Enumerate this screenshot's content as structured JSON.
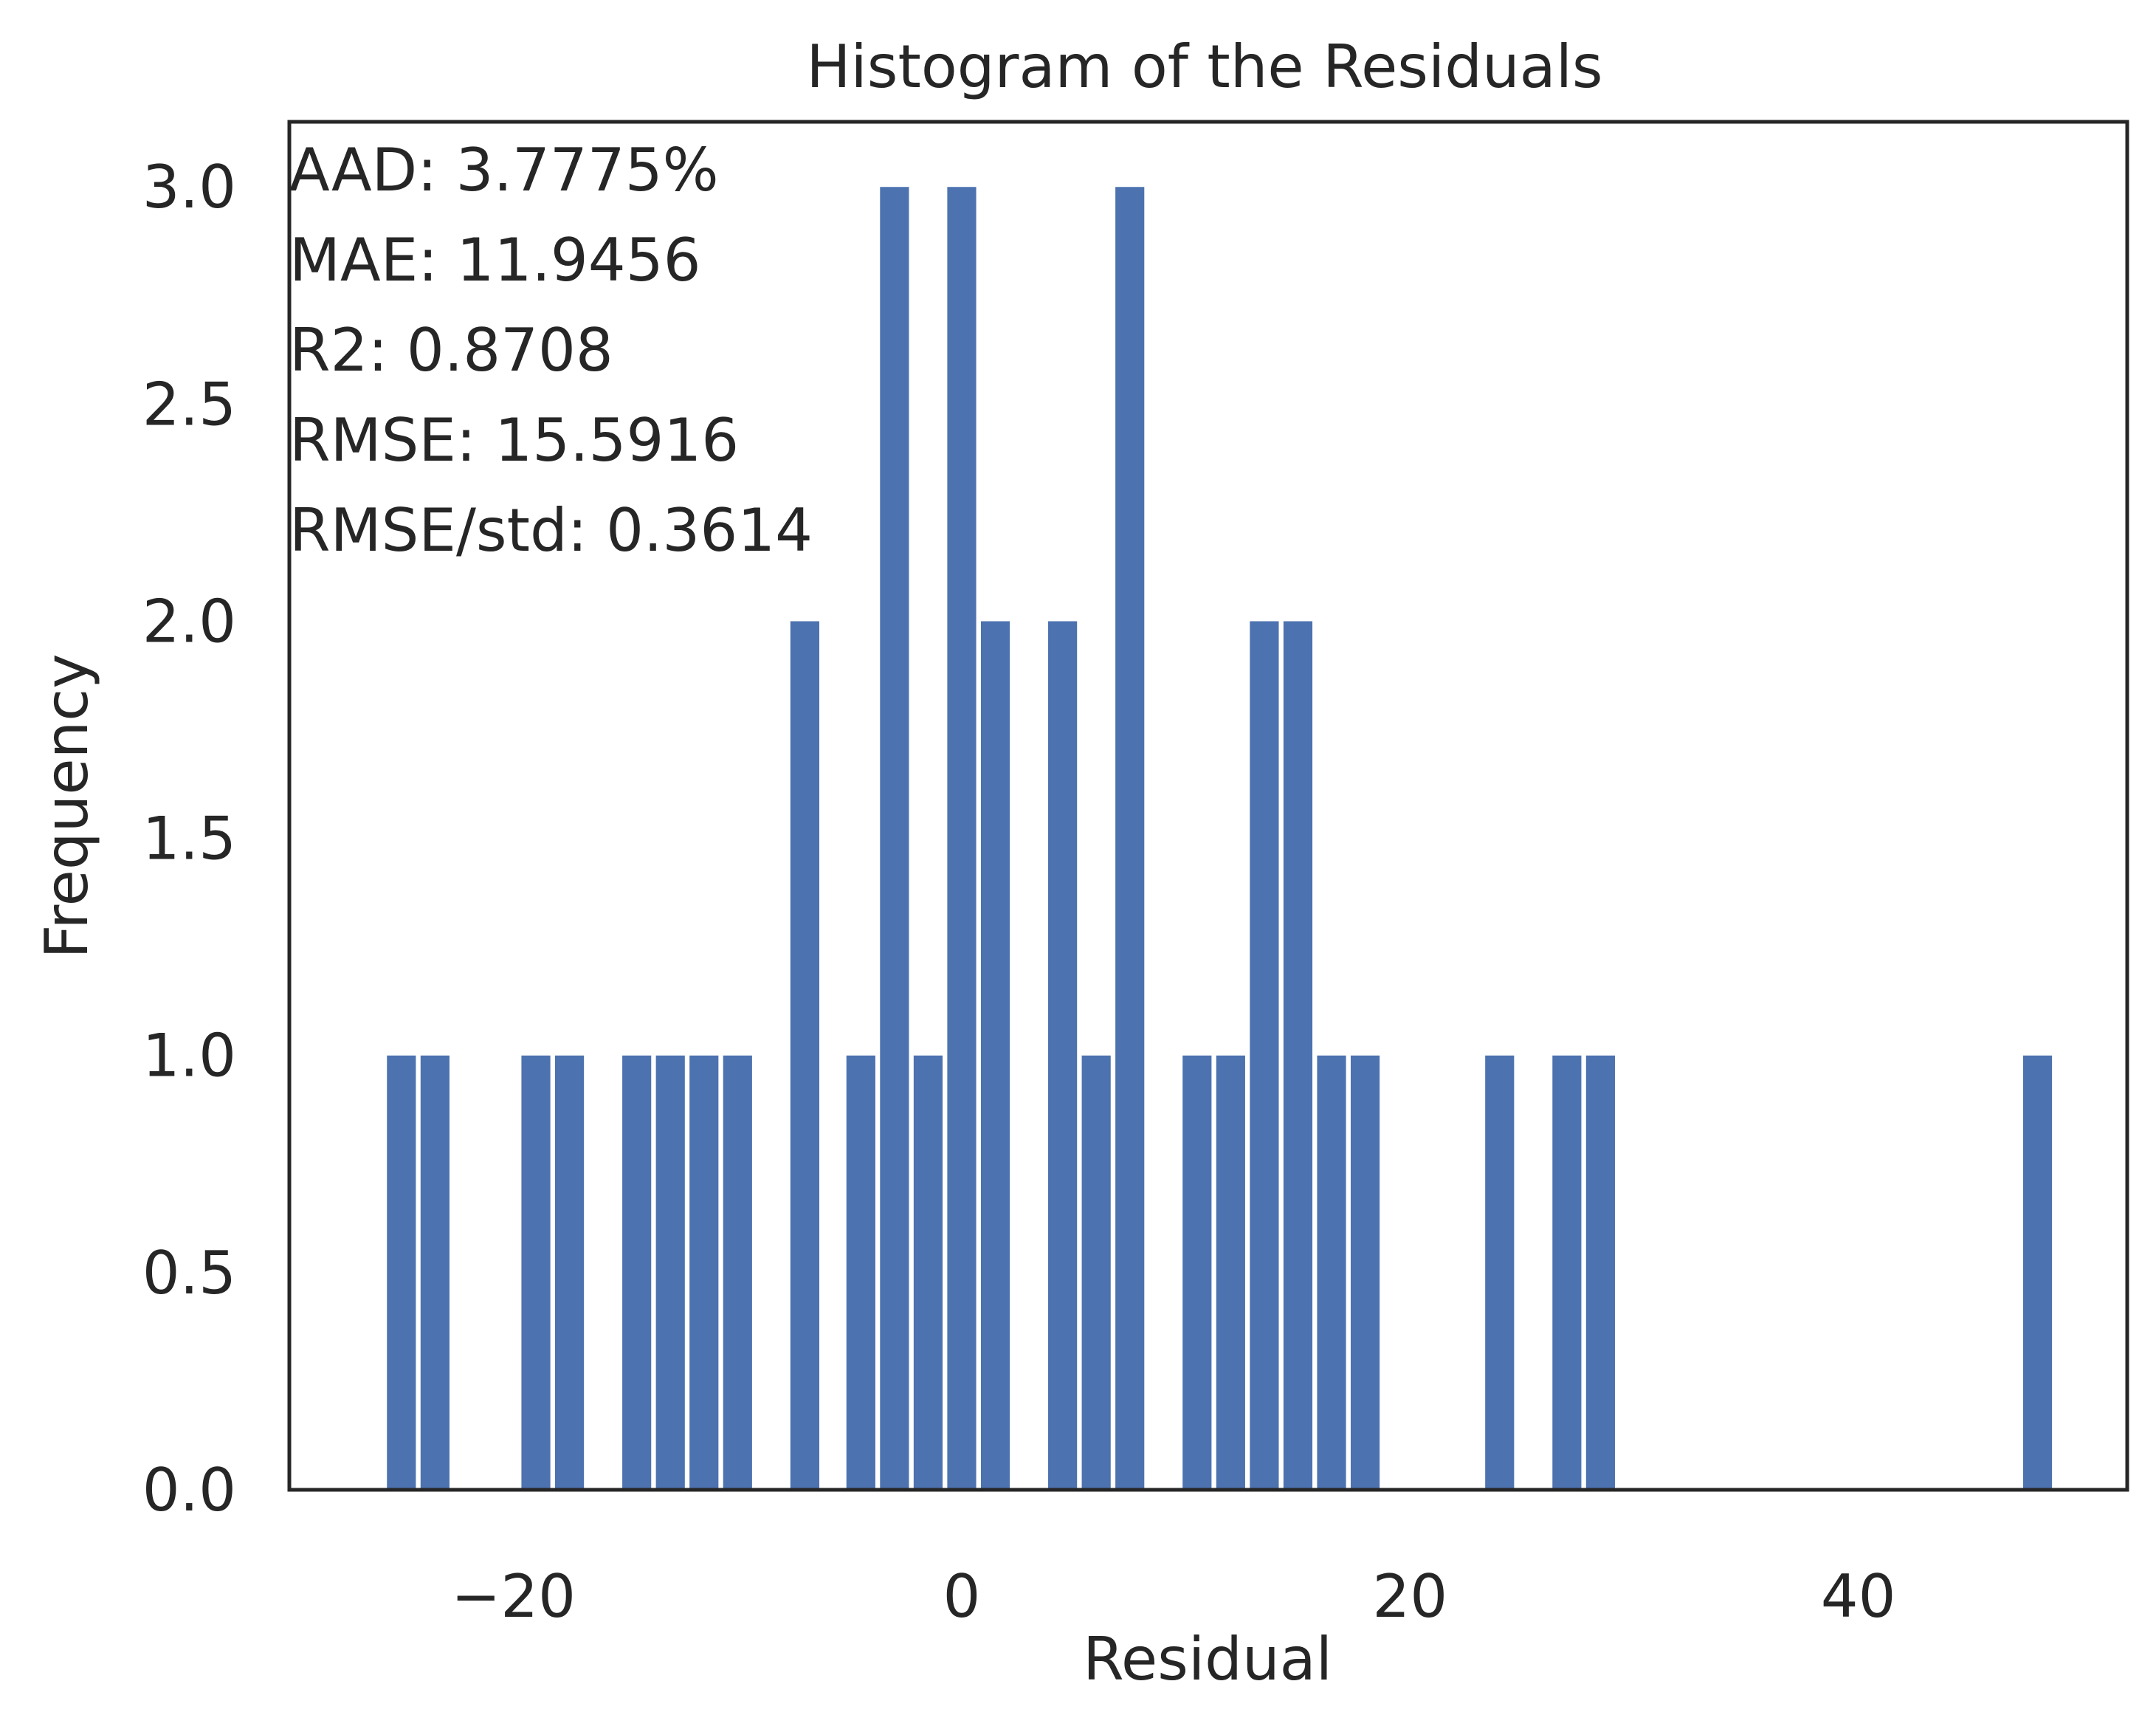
{
  "chart_data": {
    "type": "bar",
    "title": "Histogram of the Residuals",
    "xlabel": "Residual",
    "ylabel": "Frequency",
    "xlim": [
      -30,
      52
    ],
    "ylim": [
      0,
      3.15
    ],
    "grid": false,
    "bar_color": "#4c72b0",
    "text_color": "#262626",
    "bin_width": 1.5,
    "bins": [
      {
        "x": -25,
        "count": 1
      },
      {
        "x": -23.5,
        "count": 1
      },
      {
        "x": -19,
        "count": 1
      },
      {
        "x": -17.5,
        "count": 1
      },
      {
        "x": -14.5,
        "count": 1
      },
      {
        "x": -13,
        "count": 1
      },
      {
        "x": -11.5,
        "count": 1
      },
      {
        "x": -10,
        "count": 1
      },
      {
        "x": -7,
        "count": 2
      },
      {
        "x": -4.5,
        "count": 1
      },
      {
        "x": -3,
        "count": 3
      },
      {
        "x": -1.5,
        "count": 1
      },
      {
        "x": 0,
        "count": 3
      },
      {
        "x": 1.5,
        "count": 2
      },
      {
        "x": 4.5,
        "count": 2
      },
      {
        "x": 6,
        "count": 1
      },
      {
        "x": 7.5,
        "count": 3
      },
      {
        "x": 10.5,
        "count": 1
      },
      {
        "x": 12,
        "count": 1
      },
      {
        "x": 13.5,
        "count": 2
      },
      {
        "x": 15,
        "count": 2
      },
      {
        "x": 16.5,
        "count": 1
      },
      {
        "x": 18,
        "count": 1
      },
      {
        "x": 24,
        "count": 1
      },
      {
        "x": 27,
        "count": 1
      },
      {
        "x": 28.5,
        "count": 1
      },
      {
        "x": 48,
        "count": 1
      }
    ],
    "x_ticks": [
      {
        "value": -20,
        "label": "−20"
      },
      {
        "value": 0,
        "label": "0"
      },
      {
        "value": 20,
        "label": "20"
      },
      {
        "value": 40,
        "label": "40"
      }
    ],
    "y_ticks": [
      {
        "value": 0,
        "label": "0.0"
      },
      {
        "value": 0.5,
        "label": "0.5"
      },
      {
        "value": 1,
        "label": "1.0"
      },
      {
        "value": 1.5,
        "label": "1.5"
      },
      {
        "value": 2,
        "label": "2.0"
      },
      {
        "value": 2.5,
        "label": "2.5"
      },
      {
        "value": 3,
        "label": "3.0"
      }
    ],
    "annotations": [
      "AAD: 3.7775%",
      "MAE: 11.9456",
      "R2: 0.8708",
      "RMSE: 15.5916",
      "RMSE/std: 0.3614"
    ]
  }
}
